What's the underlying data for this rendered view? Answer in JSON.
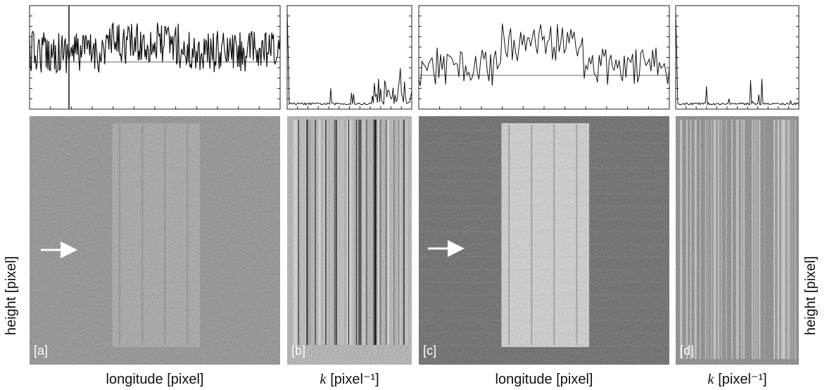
{
  "panels": [
    {
      "label": "[a]",
      "xlabel": "longitude [pixel]"
    },
    {
      "label": "[b]",
      "xlabel": {
        "symbol": "k",
        "unit": "[pixel⁻¹]"
      }
    },
    {
      "label": "[c]",
      "xlabel": "longitude [pixel]"
    },
    {
      "label": "[d]",
      "xlabel": {
        "symbol": "k",
        "unit": "[pixel⁻¹]"
      }
    }
  ],
  "ylabel_left": "height [pixel]",
  "ylabel_right": "height [pixel]"
}
